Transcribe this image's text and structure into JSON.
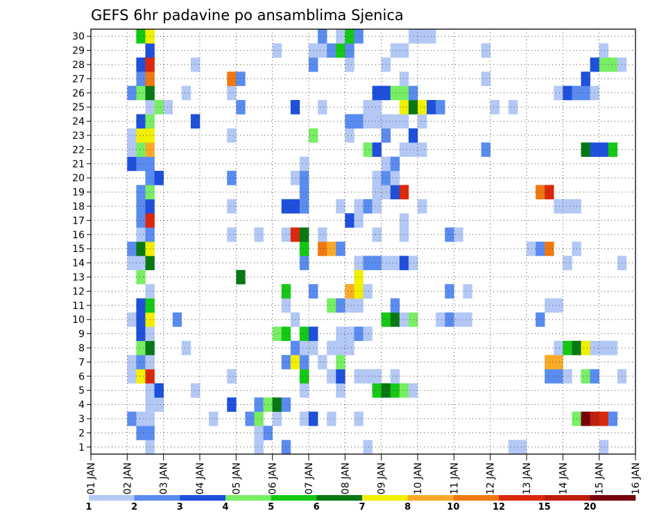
{
  "chart_data": {
    "type": "heatmap",
    "title": "GEFS 6hr padavine po ansamblima Sjenica",
    "xlabel": "",
    "ylabel": "",
    "x_start_day": 1,
    "x_end_day": 16,
    "steps_per_day": 4,
    "x_ticks": [
      "01 JAN",
      "02 JAN",
      "03 JAN",
      "04 JAN",
      "05 JAN",
      "06 JAN",
      "07 JAN",
      "08 JAN",
      "09 JAN",
      "10 JAN",
      "11 JAN",
      "12 JAN",
      "13 JAN",
      "14 JAN",
      "15 JAN",
      "16 JAN"
    ],
    "y_range": [
      1,
      30
    ],
    "y_ticks": [
      "1",
      "2",
      "3",
      "4",
      "5",
      "6",
      "7",
      "8",
      "9",
      "10",
      "11",
      "12",
      "13",
      "14",
      "15",
      "16",
      "17",
      "18",
      "19",
      "20",
      "21",
      "22",
      "23",
      "24",
      "25",
      "26",
      "27",
      "28",
      "29",
      "30"
    ],
    "grid": true,
    "legend": {
      "position": "bottom",
      "thresholds": [
        "1",
        "2",
        "3",
        "4",
        "5",
        "6",
        "7",
        "8",
        "10",
        "12",
        "15",
        "20"
      ],
      "colors": [
        "#b4c8f5",
        "#5a8cf0",
        "#1e50dc",
        "#78ee64",
        "#14c814",
        "#087814",
        "#f0f000",
        "#faaa28",
        "#f07812",
        "#dc280a",
        "#be1e0a",
        "#78000a"
      ]
    },
    "cell_encoding": "Each cell is [step_index, member, color_class]. step_index counts 6-hour steps from 01 JAN 00z; member is the ensemble member on the y axis (1-30); color_class indexes legend.colors (0 = 1-2 mm, 11 = >20 mm).",
    "cells": [
      [
        6,
        1,
        0
      ],
      [
        18,
        1,
        0
      ],
      [
        21,
        1,
        1
      ],
      [
        30,
        1,
        0
      ],
      [
        46,
        1,
        0
      ],
      [
        47,
        1,
        0
      ],
      [
        56,
        1,
        0
      ],
      [
        5,
        2,
        1
      ],
      [
        6,
        2,
        1
      ],
      [
        18,
        2,
        0
      ],
      [
        19,
        2,
        1
      ],
      [
        4,
        3,
        1
      ],
      [
        5,
        3,
        0
      ],
      [
        6,
        3,
        0
      ],
      [
        13,
        3,
        0
      ],
      [
        17,
        3,
        1
      ],
      [
        18,
        3,
        3
      ],
      [
        20,
        3,
        0
      ],
      [
        23,
        3,
        0
      ],
      [
        24,
        3,
        2
      ],
      [
        26,
        3,
        0
      ],
      [
        29,
        3,
        0
      ],
      [
        53,
        3,
        3
      ],
      [
        54,
        3,
        11
      ],
      [
        55,
        3,
        10
      ],
      [
        56,
        3,
        9
      ],
      [
        57,
        3,
        1
      ],
      [
        6,
        4,
        0
      ],
      [
        7,
        4,
        0
      ],
      [
        15,
        4,
        2
      ],
      [
        18,
        4,
        1
      ],
      [
        19,
        4,
        3
      ],
      [
        20,
        4,
        5
      ],
      [
        21,
        4,
        1
      ],
      [
        6,
        5,
        0
      ],
      [
        7,
        5,
        2
      ],
      [
        11,
        5,
        0
      ],
      [
        23,
        5,
        0
      ],
      [
        27,
        5,
        0
      ],
      [
        31,
        5,
        4
      ],
      [
        32,
        5,
        5
      ],
      [
        33,
        5,
        4
      ],
      [
        34,
        5,
        3
      ],
      [
        35,
        5,
        0
      ],
      [
        4,
        6,
        0
      ],
      [
        5,
        6,
        6
      ],
      [
        6,
        6,
        9
      ],
      [
        15,
        6,
        0
      ],
      [
        23,
        6,
        4
      ],
      [
        26,
        6,
        0
      ],
      [
        27,
        6,
        2
      ],
      [
        29,
        6,
        0
      ],
      [
        30,
        6,
        0
      ],
      [
        31,
        6,
        0
      ],
      [
        33,
        6,
        0
      ],
      [
        50,
        6,
        1
      ],
      [
        51,
        6,
        1
      ],
      [
        52,
        6,
        0
      ],
      [
        54,
        6,
        3
      ],
      [
        55,
        6,
        1
      ],
      [
        58,
        6,
        0
      ],
      [
        4,
        7,
        0
      ],
      [
        5,
        7,
        1
      ],
      [
        6,
        7,
        0
      ],
      [
        21,
        7,
        1
      ],
      [
        22,
        7,
        6
      ],
      [
        23,
        7,
        1
      ],
      [
        25,
        7,
        0
      ],
      [
        27,
        7,
        3
      ],
      [
        50,
        7,
        7
      ],
      [
        51,
        7,
        7
      ],
      [
        5,
        8,
        3
      ],
      [
        6,
        8,
        5
      ],
      [
        10,
        8,
        0
      ],
      [
        22,
        8,
        1
      ],
      [
        23,
        8,
        0
      ],
      [
        24,
        8,
        0
      ],
      [
        26,
        8,
        0
      ],
      [
        27,
        8,
        0
      ],
      [
        28,
        8,
        0
      ],
      [
        51,
        8,
        0
      ],
      [
        52,
        8,
        4
      ],
      [
        53,
        8,
        5
      ],
      [
        54,
        8,
        6
      ],
      [
        55,
        8,
        0
      ],
      [
        56,
        8,
        0
      ],
      [
        57,
        8,
        0
      ],
      [
        5,
        9,
        2
      ],
      [
        6,
        9,
        0
      ],
      [
        20,
        9,
        3
      ],
      [
        21,
        9,
        4
      ],
      [
        23,
        9,
        4
      ],
      [
        24,
        9,
        2
      ],
      [
        27,
        9,
        0
      ],
      [
        28,
        9,
        0
      ],
      [
        29,
        9,
        1
      ],
      [
        30,
        9,
        0
      ],
      [
        4,
        10,
        0
      ],
      [
        5,
        10,
        2
      ],
      [
        6,
        10,
        6
      ],
      [
        9,
        10,
        1
      ],
      [
        22,
        10,
        0
      ],
      [
        32,
        10,
        4
      ],
      [
        33,
        10,
        5
      ],
      [
        34,
        10,
        0
      ],
      [
        35,
        10,
        3
      ],
      [
        38,
        10,
        0
      ],
      [
        39,
        10,
        1
      ],
      [
        40,
        10,
        0
      ],
      [
        41,
        10,
        0
      ],
      [
        49,
        10,
        1
      ],
      [
        5,
        11,
        2
      ],
      [
        6,
        11,
        4
      ],
      [
        21,
        11,
        0
      ],
      [
        26,
        11,
        3
      ],
      [
        27,
        11,
        1
      ],
      [
        28,
        11,
        0
      ],
      [
        29,
        11,
        0
      ],
      [
        33,
        11,
        1
      ],
      [
        50,
        11,
        0
      ],
      [
        51,
        11,
        0
      ],
      [
        6,
        12,
        0
      ],
      [
        21,
        12,
        4
      ],
      [
        24,
        12,
        1
      ],
      [
        28,
        12,
        7
      ],
      [
        29,
        12,
        6
      ],
      [
        30,
        12,
        0
      ],
      [
        39,
        12,
        1
      ],
      [
        41,
        12,
        0
      ],
      [
        5,
        13,
        3
      ],
      [
        16,
        13,
        5
      ],
      [
        29,
        13,
        6
      ],
      [
        4,
        14,
        0
      ],
      [
        5,
        14,
        0
      ],
      [
        6,
        14,
        5
      ],
      [
        23,
        14,
        1
      ],
      [
        29,
        14,
        0
      ],
      [
        30,
        14,
        1
      ],
      [
        31,
        14,
        1
      ],
      [
        32,
        14,
        0
      ],
      [
        33,
        14,
        0
      ],
      [
        34,
        14,
        2
      ],
      [
        35,
        14,
        0
      ],
      [
        52,
        14,
        0
      ],
      [
        58,
        14,
        0
      ],
      [
        4,
        15,
        1
      ],
      [
        5,
        15,
        5
      ],
      [
        6,
        15,
        6
      ],
      [
        23,
        15,
        4
      ],
      [
        25,
        15,
        8
      ],
      [
        26,
        15,
        7
      ],
      [
        27,
        15,
        1
      ],
      [
        48,
        15,
        0
      ],
      [
        49,
        15,
        1
      ],
      [
        50,
        15,
        8
      ],
      [
        53,
        15,
        0
      ],
      [
        5,
        16,
        0
      ],
      [
        6,
        16,
        1
      ],
      [
        15,
        16,
        0
      ],
      [
        18,
        16,
        0
      ],
      [
        21,
        16,
        0
      ],
      [
        22,
        16,
        9
      ],
      [
        23,
        16,
        5
      ],
      [
        25,
        16,
        0
      ],
      [
        31,
        16,
        0
      ],
      [
        34,
        16,
        0
      ],
      [
        39,
        16,
        1
      ],
      [
        40,
        16,
        0
      ],
      [
        5,
        17,
        1
      ],
      [
        6,
        17,
        9
      ],
      [
        28,
        17,
        2
      ],
      [
        29,
        17,
        0
      ],
      [
        34,
        17,
        0
      ],
      [
        5,
        18,
        1
      ],
      [
        6,
        18,
        2
      ],
      [
        15,
        18,
        0
      ],
      [
        21,
        18,
        2
      ],
      [
        22,
        18,
        2
      ],
      [
        23,
        18,
        1
      ],
      [
        27,
        18,
        0
      ],
      [
        29,
        18,
        0
      ],
      [
        30,
        18,
        1
      ],
      [
        31,
        18,
        0
      ],
      [
        36,
        18,
        0
      ],
      [
        51,
        18,
        0
      ],
      [
        52,
        18,
        0
      ],
      [
        53,
        18,
        0
      ],
      [
        5,
        19,
        1
      ],
      [
        6,
        19,
        3
      ],
      [
        23,
        19,
        1
      ],
      [
        31,
        19,
        0
      ],
      [
        32,
        19,
        0
      ],
      [
        33,
        19,
        2
      ],
      [
        34,
        19,
        9
      ],
      [
        49,
        19,
        8
      ],
      [
        50,
        19,
        9
      ],
      [
        6,
        20,
        1
      ],
      [
        7,
        20,
        2
      ],
      [
        15,
        20,
        1
      ],
      [
        22,
        20,
        0
      ],
      [
        23,
        20,
        1
      ],
      [
        31,
        20,
        0
      ],
      [
        32,
        20,
        1
      ],
      [
        33,
        20,
        0
      ],
      [
        4,
        21,
        2
      ],
      [
        5,
        21,
        1
      ],
      [
        6,
        21,
        1
      ],
      [
        23,
        21,
        0
      ],
      [
        32,
        21,
        0
      ],
      [
        33,
        21,
        1
      ],
      [
        4,
        22,
        0
      ],
      [
        5,
        22,
        3
      ],
      [
        6,
        22,
        7
      ],
      [
        30,
        22,
        3
      ],
      [
        31,
        22,
        2
      ],
      [
        34,
        22,
        0
      ],
      [
        35,
        22,
        0
      ],
      [
        36,
        22,
        0
      ],
      [
        43,
        22,
        1
      ],
      [
        54,
        22,
        5
      ],
      [
        55,
        22,
        2
      ],
      [
        56,
        22,
        2
      ],
      [
        57,
        22,
        4
      ],
      [
        4,
        23,
        0
      ],
      [
        5,
        23,
        6
      ],
      [
        6,
        23,
        6
      ],
      [
        15,
        23,
        0
      ],
      [
        24,
        23,
        3
      ],
      [
        28,
        23,
        0
      ],
      [
        32,
        23,
        1
      ],
      [
        35,
        23,
        2
      ],
      [
        5,
        24,
        2
      ],
      [
        6,
        24,
        3
      ],
      [
        11,
        24,
        2
      ],
      [
        28,
        24,
        1
      ],
      [
        29,
        24,
        1
      ],
      [
        30,
        24,
        0
      ],
      [
        31,
        24,
        0
      ],
      [
        32,
        24,
        0
      ],
      [
        33,
        24,
        0
      ],
      [
        34,
        24,
        0
      ],
      [
        36,
        24,
        0
      ],
      [
        6,
        25,
        0
      ],
      [
        7,
        25,
        3
      ],
      [
        8,
        25,
        0
      ],
      [
        16,
        25,
        1
      ],
      [
        22,
        25,
        2
      ],
      [
        25,
        25,
        0
      ],
      [
        30,
        25,
        0
      ],
      [
        31,
        25,
        0
      ],
      [
        34,
        25,
        6
      ],
      [
        35,
        25,
        5
      ],
      [
        36,
        25,
        6
      ],
      [
        37,
        25,
        2
      ],
      [
        38,
        25,
        1
      ],
      [
        44,
        25,
        0
      ],
      [
        46,
        25,
        0
      ],
      [
        4,
        26,
        1
      ],
      [
        5,
        26,
        3
      ],
      [
        6,
        26,
        5
      ],
      [
        10,
        26,
        0
      ],
      [
        15,
        26,
        0
      ],
      [
        31,
        26,
        2
      ],
      [
        32,
        26,
        2
      ],
      [
        33,
        26,
        3
      ],
      [
        34,
        26,
        3
      ],
      [
        35,
        26,
        1
      ],
      [
        51,
        26,
        0
      ],
      [
        52,
        26,
        2
      ],
      [
        53,
        26,
        1
      ],
      [
        54,
        26,
        1
      ],
      [
        55,
        26,
        0
      ],
      [
        5,
        27,
        1
      ],
      [
        6,
        27,
        8
      ],
      [
        15,
        27,
        8
      ],
      [
        16,
        27,
        1
      ],
      [
        34,
        27,
        0
      ],
      [
        43,
        27,
        0
      ],
      [
        54,
        27,
        2
      ],
      [
        5,
        28,
        2
      ],
      [
        6,
        28,
        9
      ],
      [
        11,
        28,
        0
      ],
      [
        24,
        28,
        1
      ],
      [
        28,
        28,
        0
      ],
      [
        32,
        28,
        0
      ],
      [
        55,
        28,
        2
      ],
      [
        56,
        28,
        3
      ],
      [
        57,
        28,
        3
      ],
      [
        58,
        28,
        0
      ],
      [
        6,
        29,
        2
      ],
      [
        20,
        29,
        0
      ],
      [
        24,
        29,
        0
      ],
      [
        25,
        29,
        0
      ],
      [
        26,
        29,
        1
      ],
      [
        27,
        29,
        4
      ],
      [
        28,
        29,
        1
      ],
      [
        33,
        29,
        0
      ],
      [
        34,
        29,
        0
      ],
      [
        43,
        29,
        0
      ],
      [
        56,
        29,
        0
      ],
      [
        5,
        30,
        4
      ],
      [
        6,
        30,
        6
      ],
      [
        25,
        30,
        1
      ],
      [
        27,
        30,
        0
      ],
      [
        28,
        30,
        4
      ],
      [
        29,
        30,
        1
      ],
      [
        35,
        30,
        0
      ],
      [
        36,
        30,
        0
      ],
      [
        37,
        30,
        0
      ]
    ]
  }
}
